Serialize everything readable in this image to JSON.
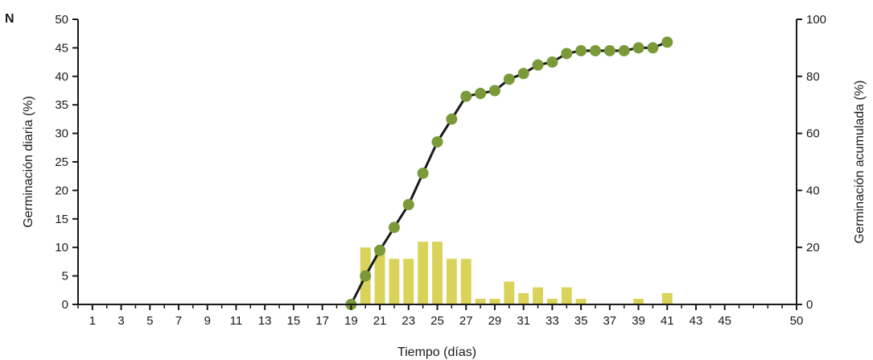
{
  "panel_label": "N",
  "chart_data": {
    "type": "bar",
    "xlabel": "Tiempo (días)",
    "ylabel": "Germinación diaria (%)",
    "y2label": "Germinación acumulada (%)",
    "xlim": [
      0,
      50
    ],
    "xticks": [
      1,
      3,
      5,
      7,
      9,
      11,
      13,
      15,
      17,
      19,
      21,
      23,
      25,
      27,
      29,
      31,
      33,
      35,
      37,
      39,
      41,
      43,
      45,
      50
    ],
    "ylim": [
      0,
      50
    ],
    "yticks": [
      0,
      5,
      10,
      15,
      20,
      25,
      30,
      35,
      40,
      45,
      50
    ],
    "y2lim": [
      0,
      100
    ],
    "y2ticks": [
      0,
      20,
      40,
      60,
      80,
      100
    ],
    "grid": false,
    "colors": {
      "bars": "#d9d35a",
      "line": "#1a1a1a",
      "markers": "#7a9a3a",
      "axes": "#1a1a1a"
    },
    "series": [
      {
        "type": "bar",
        "axis": "left",
        "x": [
          20,
          21,
          22,
          23,
          24,
          25,
          26,
          27,
          28,
          29,
          30,
          31,
          32,
          33,
          34,
          35,
          39,
          41
        ],
        "values": [
          10,
          10,
          8,
          8,
          11,
          11,
          8,
          8,
          1,
          1,
          4,
          2,
          3,
          1,
          3,
          1,
          1,
          2
        ]
      },
      {
        "type": "line",
        "axis": "right",
        "x": [
          19,
          20,
          21,
          22,
          23,
          24,
          25,
          26,
          27,
          28,
          29,
          30,
          31,
          32,
          33,
          34,
          35,
          36,
          37,
          38,
          39,
          40,
          41
        ],
        "values": [
          0,
          10,
          19,
          27,
          35,
          46,
          57,
          65,
          73,
          74,
          75,
          79,
          81,
          84,
          85,
          88,
          89,
          89,
          89,
          89,
          90,
          90,
          92
        ]
      }
    ]
  }
}
